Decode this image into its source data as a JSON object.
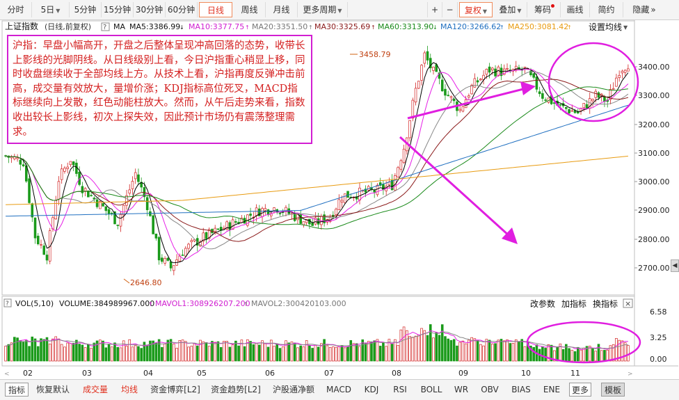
{
  "toolbar": {
    "periods": [
      {
        "label": "分时"
      },
      {
        "label": "5日",
        "dropdown": true
      },
      {
        "label": "5分钟"
      },
      {
        "label": "15分钟"
      },
      {
        "label": "30分钟"
      },
      {
        "label": "60分钟"
      },
      {
        "label": "日线",
        "active": true
      },
      {
        "label": "周线"
      },
      {
        "label": "月线"
      },
      {
        "label": "更多周期",
        "dropdown": true
      }
    ],
    "zoom_in": "+",
    "zoom_out": "−",
    "fuquan": "复权",
    "diejia": "叠加",
    "chouma": "筹码",
    "huaxian": "画线",
    "jianyue": "简约",
    "yincang": "隐藏",
    "more_arrows": "»"
  },
  "indicator_bar": {
    "name": "上证指数",
    "mode": "(日线,前复权)",
    "help": "?",
    "ma": "MA",
    "ma5": "MA5:3386.99",
    "ma10": "MA10:3377.75",
    "ma20": "MA20:3351.50",
    "ma30": "MA30:3325.69",
    "ma60": "MA60:3313.90",
    "ma120": "MA120:3266.62",
    "ma250": "MA250:3081.42",
    "settings": "设置均线"
  },
  "colors": {
    "ma5": "#000000",
    "ma10": "#e61ee6",
    "ma20": "#888888",
    "ma30": "#8b1a1a",
    "ma60": "#1a8a1a",
    "ma120": "#1f6fc0",
    "ma250": "#e89b10",
    "up": "#d22222",
    "down": "#1a9a1a",
    "highlight": "#e01ee0"
  },
  "annotation": {
    "text": "沪指：早盘小幅高开，开盘之后整体呈现冲高回落的态势，收带长上影线的光脚阴线。从日线级别上看，今日沪指重心稍显上移，同时收盘继续收于全部均线上方。从技术上看，沪指再度反弹冲击前高，成交量有效放大，量增价涨；KDJ指标高位死叉，MACD指标继续向上发散，红色动能柱放大。然而，从午后走势来看，指数收出较长上影线，初次上探失效，因此预计市场仍有震荡整理需求。"
  },
  "price_axis": [
    "3400.00",
    "3300.00",
    "3200.00",
    "3100.00",
    "3000.00",
    "2900.00",
    "2800.00",
    "2700.00"
  ],
  "price_marks": {
    "high": "3458.79",
    "low": "2646.80"
  },
  "volume_bar": {
    "name": "VOL(5,10)",
    "volume": "VOLUME:384989967.000",
    "mavol1": "MAVOL1:308926207.200",
    "mavol2": "MAVOL2:300420103.000",
    "gaicanshu": "改参数",
    "jiazhibiao": "加指标",
    "huanzhibiao": "换指标",
    "close": "×"
  },
  "volume_axis": [
    "6.58",
    "3.25",
    "0.00"
  ],
  "months": [
    "02",
    "03",
    "04",
    "05",
    "06",
    "07",
    "08",
    "09",
    "10",
    "11"
  ],
  "bottom_tabs": [
    {
      "label": "指标"
    },
    {
      "label": "恢复默认"
    },
    {
      "label": "成交量",
      "hl": true
    },
    {
      "label": "均线",
      "hl": true
    },
    {
      "label": "资金博弈[L2]"
    },
    {
      "label": "资金趋势[L2]"
    },
    {
      "label": "沪股通净额"
    },
    {
      "label": "MACD"
    },
    {
      "label": "KDJ"
    },
    {
      "label": "RSI"
    },
    {
      "label": "BOLL"
    },
    {
      "label": "WR"
    },
    {
      "label": "OBV"
    },
    {
      "label": "BIAS"
    },
    {
      "label": "ENE"
    },
    {
      "label": "更多"
    },
    {
      "label": "模板"
    }
  ]
}
